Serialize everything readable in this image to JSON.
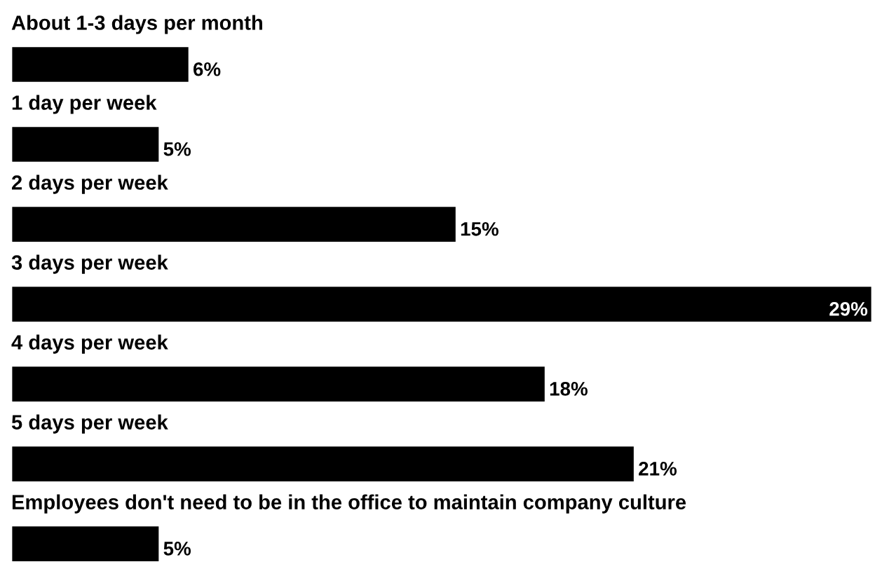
{
  "chart_data": {
    "type": "bar",
    "orientation": "horizontal",
    "categories": [
      "About 1-3 days per month",
      "1 day per week",
      "2 days per week",
      "3 days per week",
      "4 days per week",
      "5 days per week",
      "Employees don't need to be in the office to maintain company culture"
    ],
    "values": [
      6,
      5,
      15,
      29,
      18,
      21,
      5
    ],
    "value_labels": [
      "6%",
      "5%",
      "15%",
      "29%",
      "18%",
      "21%",
      "5%"
    ],
    "color": "#000000"
  }
}
